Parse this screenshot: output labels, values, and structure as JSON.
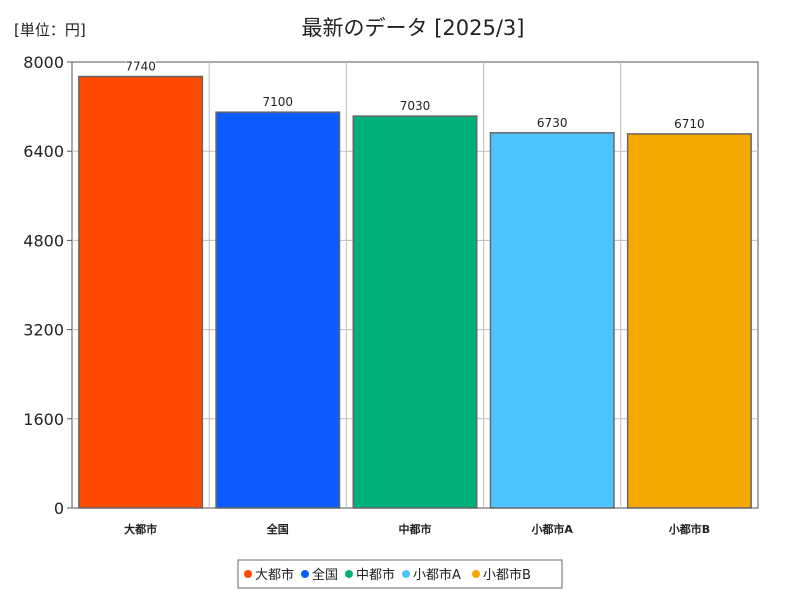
{
  "chart_data": {
    "type": "bar",
    "title": "最新のデータ [2025/3]",
    "unit_label": "[単位：円]",
    "categories": [
      "大都市",
      "全国",
      "中都市",
      "小都市A",
      "小都市B"
    ],
    "values": [
      7740,
      7100,
      7030,
      6730,
      6710
    ],
    "data_labels": [
      "7740",
      "7100",
      "7030",
      "6730",
      "6710"
    ],
    "colors": [
      "#ff4a00",
      "#0a5cff",
      "#00b07a",
      "#4fc3ff",
      "#f5a800"
    ],
    "ylim": [
      0,
      8000
    ],
    "yticks": [
      0,
      1600,
      3200,
      4800,
      6400,
      8000
    ],
    "ytick_labels": [
      "0",
      "1600",
      "3200",
      "4800",
      "6400",
      "8000"
    ],
    "grid": true,
    "legend": {
      "placement": "bottom-center",
      "entries": [
        "大都市",
        "全国",
        "中都市",
        "小都市A",
        "小都市B"
      ]
    }
  }
}
